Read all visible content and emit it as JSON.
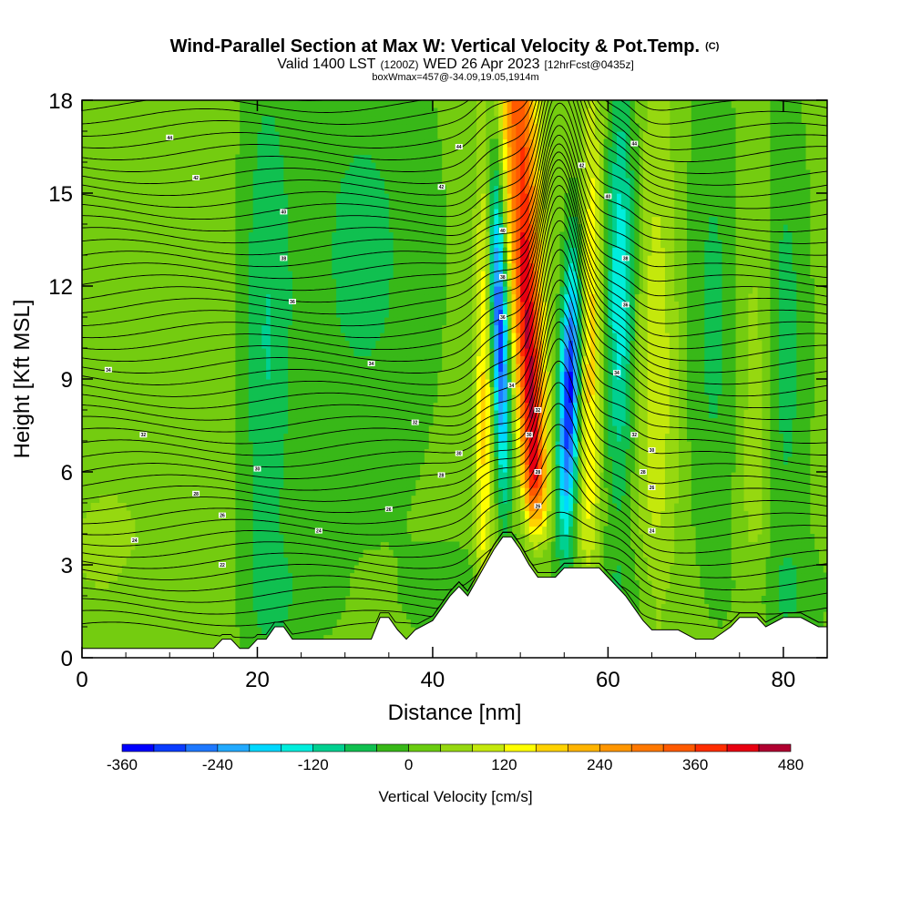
{
  "chart_data": {
    "type": "heatmap",
    "title": "Wind-Parallel Section at Max W: Vertical Velocity & Pot.Temp.",
    "title_mark": "(C)",
    "subtitle_parts": [
      "Valid 1400 LST",
      "(1200Z)",
      "WED 26 Apr 2023",
      "[12hrFcst@0435z]"
    ],
    "subtitle2": "boxWmax=457@-34.09,19.05,1914m",
    "xlabel": "Distance [nm]",
    "ylabel": "Height [Kft MSL]",
    "xlim": [
      0,
      85
    ],
    "ylim": [
      0,
      18
    ],
    "xticks": [
      "0",
      "20",
      "40",
      "60",
      "80"
    ],
    "xtick_values": [
      0,
      20,
      40,
      60,
      80
    ],
    "yticks": [
      "0",
      "3",
      "6",
      "9",
      "12",
      "15",
      "18"
    ],
    "ytick_values": [
      0,
      3,
      6,
      9,
      12,
      15,
      18
    ],
    "colorbar": {
      "label": "Vertical Velocity [cm/s]",
      "range": [
        -360,
        480
      ],
      "step": 40,
      "tick_labels": [
        "-360",
        "-240",
        "-120",
        "0",
        "120",
        "240",
        "360",
        "480"
      ],
      "tick_values": [
        -360,
        -240,
        -120,
        0,
        120,
        240,
        360,
        480
      ],
      "colors": [
        "#0000ff",
        "#0a3cff",
        "#1e78ff",
        "#22aaff",
        "#00d8ff",
        "#00eedd",
        "#00d090",
        "#10c050",
        "#38b818",
        "#6acc10",
        "#96d810",
        "#c4e80c",
        "#ffff00",
        "#ffd200",
        "#ffb400",
        "#ff9600",
        "#ff7800",
        "#ff5a00",
        "#ff2d00",
        "#e80010",
        "#b00030"
      ]
    },
    "terrain": {
      "x": [
        0,
        15,
        16,
        17,
        18,
        19,
        20,
        21,
        22,
        23,
        24,
        26,
        28,
        30,
        33,
        34,
        35,
        36,
        37,
        38,
        40,
        41,
        42,
        43,
        44,
        45,
        46,
        47,
        48,
        49,
        50,
        51,
        52,
        53,
        54,
        55,
        57,
        59,
        60,
        61,
        62,
        63,
        64,
        65,
        66,
        68,
        70,
        72,
        74,
        75,
        76,
        77,
        78,
        80,
        82,
        84,
        85
      ],
      "height": [
        0.3,
        0.3,
        0.6,
        0.6,
        0.3,
        0.3,
        0.6,
        0.6,
        1.0,
        1.0,
        0.6,
        0.6,
        0.6,
        0.6,
        0.6,
        1.3,
        1.3,
        0.9,
        0.6,
        0.9,
        1.2,
        1.6,
        2.0,
        2.3,
        2.0,
        2.5,
        3.0,
        3.5,
        3.9,
        3.9,
        3.5,
        3.0,
        2.6,
        2.6,
        2.6,
        2.9,
        2.9,
        2.9,
        2.6,
        2.3,
        2.0,
        1.6,
        1.2,
        0.9,
        0.9,
        0.9,
        0.6,
        0.6,
        1.0,
        1.3,
        1.3,
        1.3,
        1.0,
        1.3,
        1.3,
        1.0,
        1.0
      ]
    },
    "theta_contour_labels": [
      {
        "text": "44",
        "x": 10,
        "y": 16.8
      },
      {
        "text": "42",
        "x": 13,
        "y": 15.5
      },
      {
        "text": "40",
        "x": 23,
        "y": 14.4
      },
      {
        "text": "38",
        "x": 23,
        "y": 12.9
      },
      {
        "text": "36",
        "x": 24,
        "y": 11.5
      },
      {
        "text": "34",
        "x": 3,
        "y": 9.3
      },
      {
        "text": "34",
        "x": 33,
        "y": 9.5
      },
      {
        "text": "32",
        "x": 7,
        "y": 7.2
      },
      {
        "text": "32",
        "x": 38,
        "y": 7.6
      },
      {
        "text": "30",
        "x": 20,
        "y": 6.1
      },
      {
        "text": "30",
        "x": 43,
        "y": 6.6
      },
      {
        "text": "28",
        "x": 13,
        "y": 5.3
      },
      {
        "text": "28",
        "x": 41,
        "y": 5.9
      },
      {
        "text": "26",
        "x": 16,
        "y": 4.6
      },
      {
        "text": "26",
        "x": 35,
        "y": 4.8
      },
      {
        "text": "24",
        "x": 27,
        "y": 4.1
      },
      {
        "text": "24",
        "x": 6,
        "y": 3.8
      },
      {
        "text": "22",
        "x": 16,
        "y": 3.0
      },
      {
        "text": "44",
        "x": 43,
        "y": 16.5
      },
      {
        "text": "42",
        "x": 41,
        "y": 15.2
      },
      {
        "text": "40",
        "x": 48,
        "y": 13.8
      },
      {
        "text": "38",
        "x": 48,
        "y": 12.3
      },
      {
        "text": "36",
        "x": 48,
        "y": 11.0
      },
      {
        "text": "34",
        "x": 49,
        "y": 8.8
      },
      {
        "text": "32",
        "x": 52,
        "y": 8.0
      },
      {
        "text": "30",
        "x": 51,
        "y": 7.2
      },
      {
        "text": "28",
        "x": 52,
        "y": 6.0
      },
      {
        "text": "26",
        "x": 52,
        "y": 4.9
      },
      {
        "text": "44",
        "x": 63,
        "y": 16.6
      },
      {
        "text": "42",
        "x": 57,
        "y": 15.9
      },
      {
        "text": "40",
        "x": 60,
        "y": 14.9
      },
      {
        "text": "38",
        "x": 62,
        "y": 12.9
      },
      {
        "text": "36",
        "x": 62,
        "y": 11.4
      },
      {
        "text": "34",
        "x": 61,
        "y": 9.2
      },
      {
        "text": "32",
        "x": 63,
        "y": 7.2
      },
      {
        "text": "30",
        "x": 65,
        "y": 6.7
      },
      {
        "text": "28",
        "x": 64,
        "y": 6.0
      },
      {
        "text": "26",
        "x": 65,
        "y": 5.5
      },
      {
        "text": "24",
        "x": 65,
        "y": 4.1
      }
    ]
  }
}
